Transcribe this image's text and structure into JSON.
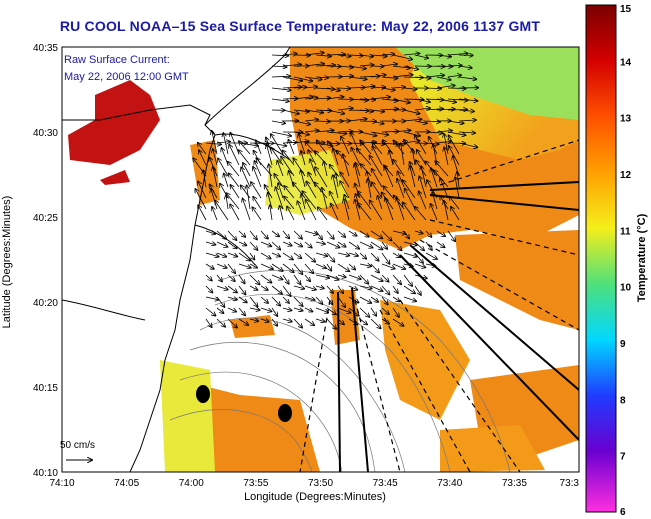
{
  "title": "RU COOL  NOAA–15  Sea Surface Temperature:  May 22, 2006 1137 GMT",
  "annotation": {
    "line1": "Raw Surface Current:",
    "line2": "May 22, 2006 12:00 GMT"
  },
  "scale_label": "50 cm/s",
  "x_axis": {
    "label": "Longitude (Degrees:Minutes)",
    "ticks": [
      "74:10",
      "74:05",
      "74:00",
      "73:55",
      "73:50",
      "73:45",
      "73:40",
      "73:35",
      "73:3"
    ]
  },
  "y_axis": {
    "label": "Latitude (Degrees:Minutes)",
    "ticks": [
      "40:35",
      "40:30",
      "40:25",
      "40:20",
      "40:15",
      "40:10"
    ]
  },
  "colorbar": {
    "label": "Temperature (°C)",
    "ticks": [
      "15",
      "14",
      "13",
      "12",
      "11",
      "10",
      "9",
      "8",
      "7",
      "6"
    ],
    "min": 6,
    "max": 15
  },
  "colors": {
    "title": "#1a1aa6",
    "land": "#ffffff",
    "warm": "#f08a16",
    "cool": "#9be05a"
  }
}
